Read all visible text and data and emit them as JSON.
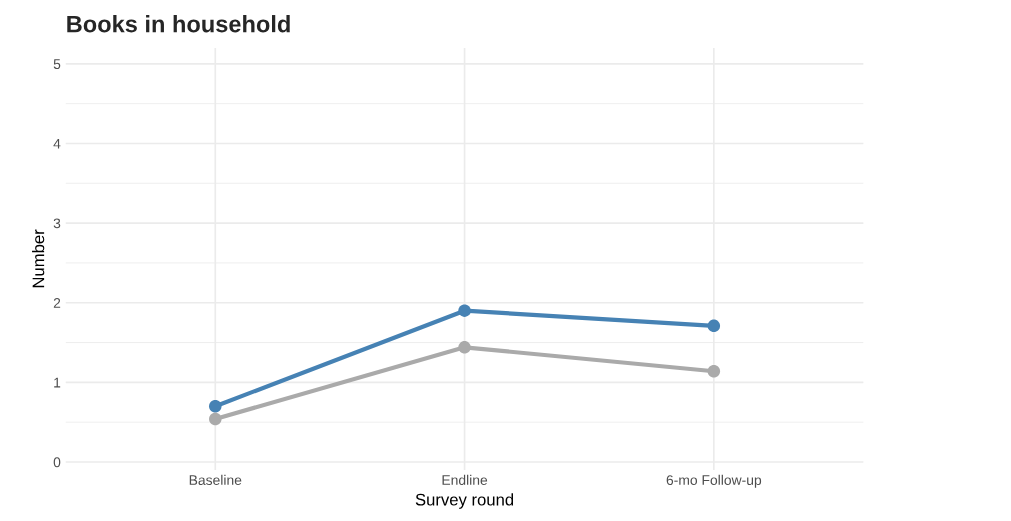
{
  "chart_data": {
    "type": "line",
    "title": "Books in household",
    "xlabel": "Survey round",
    "ylabel": "Number",
    "categories": [
      "Baseline",
      "Endline",
      "6-mo Follow-up"
    ],
    "series": [
      {
        "color": "#4682b4",
        "values": [
          0.7,
          1.9,
          1.71
        ]
      },
      {
        "color": "#aaaaaa",
        "values": [
          0.54,
          1.44,
          1.14
        ]
      }
    ],
    "ylim": [
      -0.1,
      5.2
    ],
    "yticks": [
      0,
      1,
      2,
      3,
      4,
      5
    ],
    "grid": true,
    "marker": "circle",
    "line_style": "solid",
    "legend": false
  }
}
